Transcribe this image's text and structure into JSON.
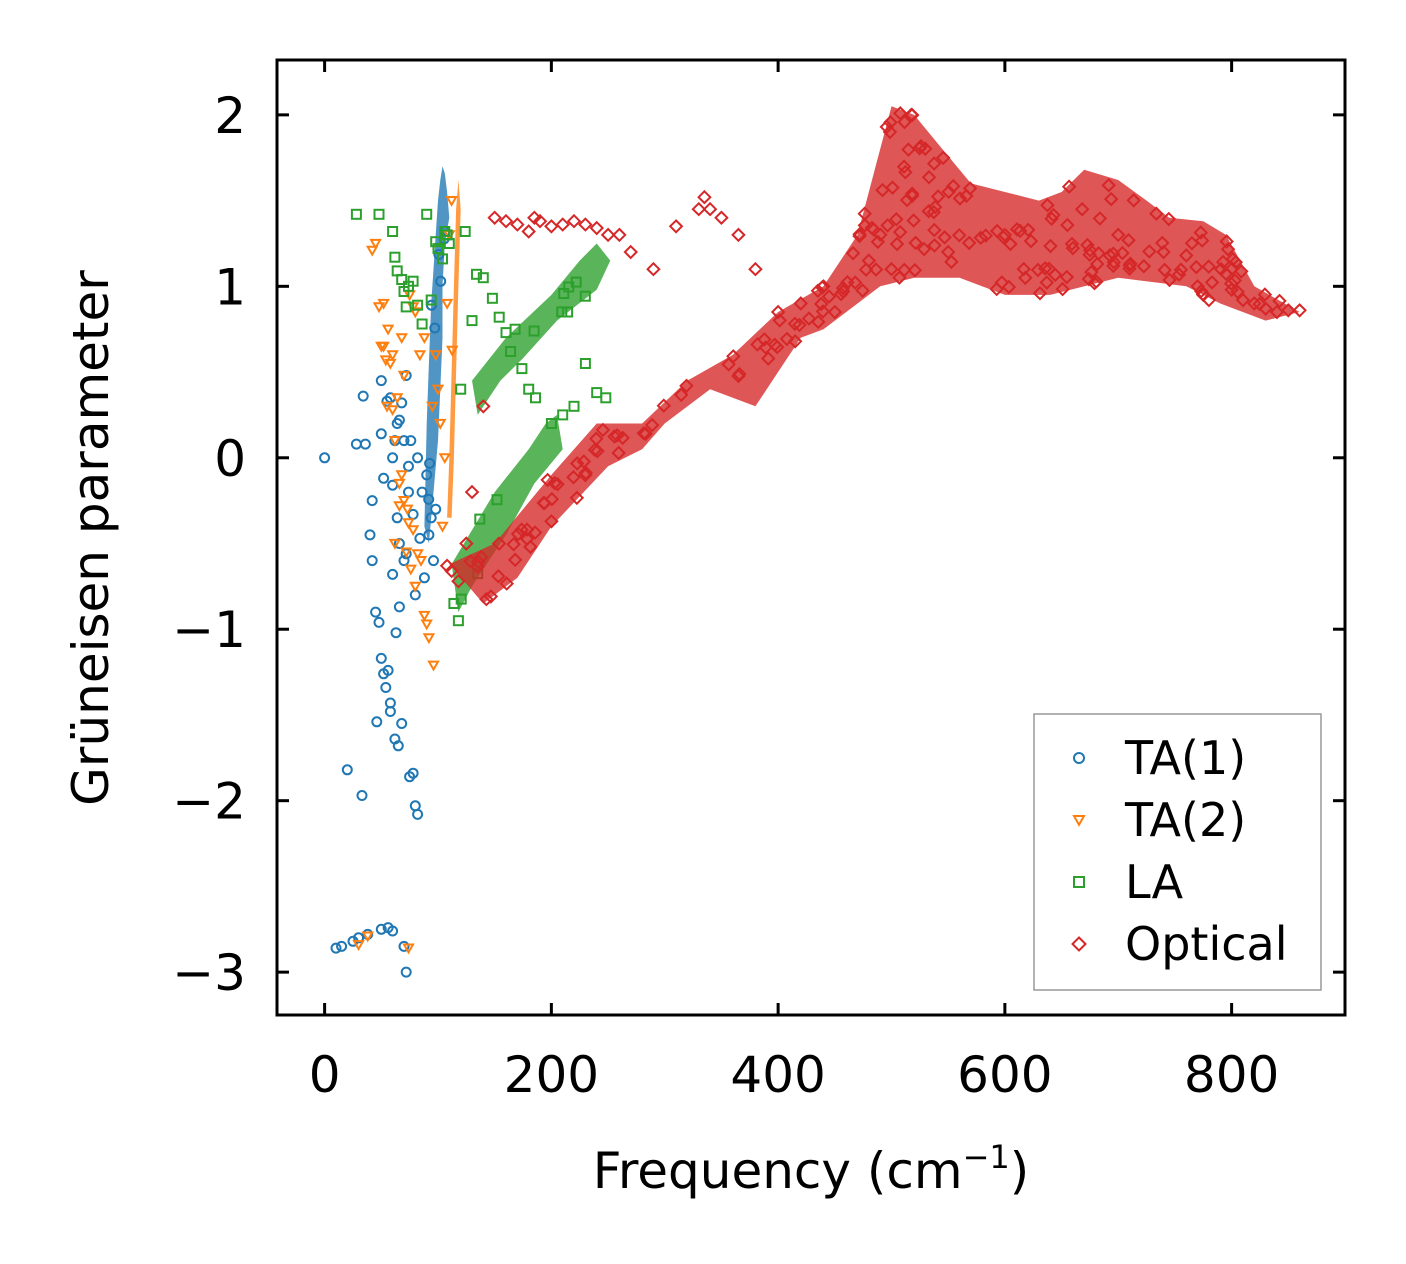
{
  "chart_data": {
    "type": "scatter",
    "xlabel": "Frequency (cm",
    "xlabel_sup": "−1",
    "xlabel_close": ")",
    "ylabel": "Grüneisen parameter",
    "xlim": [
      -42,
      900
    ],
    "ylim": [
      -3.25,
      2.32
    ],
    "x_ticks": [
      0,
      200,
      400,
      600,
      800
    ],
    "x_tick_labels": [
      "0",
      "200",
      "400",
      "600",
      "800"
    ],
    "y_ticks": [
      2,
      1,
      0,
      -1,
      -2,
      -3
    ],
    "y_tick_labels": [
      "2",
      "1",
      "0",
      "−1",
      "−2",
      "−3"
    ],
    "legend_position": "lower-right",
    "grid": false,
    "series": [
      {
        "name": "TA(1)",
        "marker": "circle",
        "color": "#1f77b4",
        "points": [
          [
            0,
            0
          ],
          [
            10,
            -2.86
          ],
          [
            15,
            -2.85
          ],
          [
            20,
            -1.82
          ],
          [
            25,
            -2.82
          ],
          [
            28,
            0.08
          ],
          [
            30,
            -2.8
          ],
          [
            33,
            -1.97
          ],
          [
            34,
            0.36
          ],
          [
            36,
            0.08
          ],
          [
            38,
            -2.78
          ],
          [
            40,
            -0.45
          ],
          [
            42,
            -0.25
          ],
          [
            42,
            -0.6
          ],
          [
            45,
            -0.9
          ],
          [
            46,
            -1.54
          ],
          [
            48,
            -0.96
          ],
          [
            50,
            -2.75
          ],
          [
            50,
            -1.17
          ],
          [
            50,
            0.14
          ],
          [
            52,
            -1.26
          ],
          [
            52,
            -0.12
          ],
          [
            54,
            -1.34
          ],
          [
            55,
            0.33
          ],
          [
            56,
            -2.74
          ],
          [
            56,
            -1.24
          ],
          [
            58,
            -1.48
          ],
          [
            60,
            -0.16
          ],
          [
            60,
            -0.68
          ],
          [
            60,
            -2.76
          ],
          [
            62,
            -1.64
          ],
          [
            63,
            -1.02
          ],
          [
            65,
            -1.68
          ],
          [
            66,
            -0.87
          ],
          [
            68,
            -1.55
          ],
          [
            70,
            -2.85
          ],
          [
            72,
            -0.56
          ],
          [
            72,
            -3.0
          ],
          [
            75,
            -1.86
          ],
          [
            78,
            -1.84
          ],
          [
            80,
            -2.03
          ],
          [
            82,
            -2.08
          ],
          [
            58,
            -1.43
          ],
          [
            62,
            0.1
          ],
          [
            64,
            -0.35
          ],
          [
            66,
            0.22
          ],
          [
            68,
            0.32
          ],
          [
            70,
            -0.6
          ],
          [
            72,
            0.48
          ],
          [
            74,
            -0.2
          ],
          [
            76,
            0.1
          ],
          [
            78,
            -0.33
          ],
          [
            80,
            -0.8
          ],
          [
            82,
            0.0
          ],
          [
            84,
            -0.47
          ],
          [
            86,
            -0.2
          ],
          [
            88,
            -0.7
          ],
          [
            90,
            -0.1
          ],
          [
            92,
            -0.45
          ],
          [
            94,
            -0.35
          ],
          [
            96,
            -0.6
          ],
          [
            98,
            -0.3
          ],
          [
            60,
            0.0
          ],
          [
            64,
            0.2
          ],
          [
            70,
            0.1
          ],
          [
            74,
            -0.05
          ],
          [
            58,
            0.35
          ],
          [
            66,
            -0.5
          ],
          [
            50,
            0.45
          ]
        ]
      },
      {
        "name": "TA(2)",
        "marker": "triangle-down",
        "color": "#ff7f0e",
        "points": [
          [
            30,
            -2.84
          ],
          [
            38,
            -2.79
          ],
          [
            42,
            1.21
          ],
          [
            45,
            1.25
          ],
          [
            48,
            0.88
          ],
          [
            50,
            0.65
          ],
          [
            52,
            0.9
          ],
          [
            54,
            0.57
          ],
          [
            55,
            0.3
          ],
          [
            56,
            0.75
          ],
          [
            58,
            0.55
          ],
          [
            60,
            0.28
          ],
          [
            62,
            0.1
          ],
          [
            64,
            0.35
          ],
          [
            66,
            -0.28
          ],
          [
            68,
            -0.1
          ],
          [
            70,
            0.48
          ],
          [
            72,
            -0.55
          ],
          [
            74,
            -0.38
          ],
          [
            76,
            -0.65
          ],
          [
            78,
            -0.42
          ],
          [
            80,
            -0.75
          ],
          [
            82,
            -0.56
          ],
          [
            85,
            -0.6
          ],
          [
            88,
            -0.92
          ],
          [
            90,
            -0.97
          ],
          [
            92,
            -1.05
          ],
          [
            96,
            -1.21
          ],
          [
            98,
            0.6
          ],
          [
            100,
            0.4
          ],
          [
            102,
            0.2
          ],
          [
            104,
            -0.4
          ],
          [
            106,
            0.0
          ],
          [
            108,
            0.9
          ],
          [
            110,
            1.3
          ],
          [
            112,
            1.5
          ],
          [
            75,
            0.95
          ],
          [
            68,
            0.7
          ],
          [
            60,
            0.6
          ],
          [
            62,
            -0.5
          ],
          [
            70,
            -0.25
          ],
          [
            73,
            -0.3
          ],
          [
            74,
            -2.86
          ],
          [
            78,
            0.88
          ],
          [
            80,
            0.85
          ],
          [
            84,
            0.6
          ],
          [
            88,
            0.7
          ],
          [
            95,
            0.3
          ],
          [
            66,
            -0.15
          ],
          [
            52,
            0.65
          ]
        ]
      },
      {
        "name": "LA",
        "marker": "square",
        "color": "#2ca02c",
        "points": [
          [
            28,
            1.42
          ],
          [
            48,
            1.42
          ],
          [
            60,
            1.32
          ],
          [
            62,
            1.17
          ],
          [
            64,
            1.09
          ],
          [
            68,
            1.04
          ],
          [
            70,
            0.97
          ],
          [
            72,
            0.88
          ],
          [
            74,
            1.0
          ],
          [
            78,
            1.03
          ],
          [
            82,
            0.89
          ],
          [
            86,
            0.78
          ],
          [
            90,
            1.42
          ],
          [
            94,
            0.92
          ],
          [
            98,
            1.26
          ],
          [
            100,
            1.22
          ],
          [
            104,
            1.16
          ],
          [
            106,
            1.32
          ],
          [
            108,
            1.3
          ],
          [
            110,
            1.25
          ],
          [
            114,
            -0.85
          ],
          [
            118,
            -0.95
          ],
          [
            120,
            0.4
          ],
          [
            124,
            1.32
          ],
          [
            130,
            0.8
          ],
          [
            134,
            1.07
          ],
          [
            140,
            1.05
          ],
          [
            148,
            0.93
          ],
          [
            154,
            0.82
          ],
          [
            160,
            0.73
          ],
          [
            164,
            0.62
          ],
          [
            168,
            0.75
          ],
          [
            174,
            0.52
          ],
          [
            180,
            0.4
          ],
          [
            186,
            0.35
          ],
          [
            200,
            0.2
          ],
          [
            210,
            0.25
          ],
          [
            220,
            0.3
          ],
          [
            230,
            0.55
          ],
          [
            240,
            0.38
          ],
          [
            248,
            0.35
          ]
        ]
      },
      {
        "name": "Optical",
        "marker": "diamond",
        "color": "#d62728",
        "points": [
          [
            108,
            -0.63
          ],
          [
            112,
            -0.66
          ],
          [
            118,
            -0.72
          ],
          [
            125,
            -0.5
          ],
          [
            130,
            -0.2
          ],
          [
            140,
            0.3
          ],
          [
            150,
            1.4
          ],
          [
            160,
            1.38
          ],
          [
            170,
            1.36
          ],
          [
            180,
            1.32
          ],
          [
            185,
            1.4
          ],
          [
            190,
            1.38
          ],
          [
            200,
            1.35
          ],
          [
            210,
            1.36
          ],
          [
            220,
            1.38
          ],
          [
            230,
            1.36
          ],
          [
            240,
            1.34
          ],
          [
            250,
            1.3
          ],
          [
            260,
            1.3
          ],
          [
            270,
            1.2
          ],
          [
            290,
            1.1
          ],
          [
            310,
            1.35
          ],
          [
            330,
            1.45
          ],
          [
            335,
            1.52
          ],
          [
            340,
            1.45
          ],
          [
            350,
            1.4
          ],
          [
            365,
            1.3
          ],
          [
            380,
            1.1
          ],
          [
            400,
            0.85
          ],
          [
            420,
            0.9
          ],
          [
            440,
            1.0
          ],
          [
            450,
            0.85
          ],
          [
            480,
            1.15
          ],
          [
            500,
            1.1
          ],
          [
            550,
            1.2
          ],
          [
            600,
            1.3
          ],
          [
            700,
            1.3
          ],
          [
            740,
            1.2
          ],
          [
            760,
            1.18
          ],
          [
            770,
            1.0
          ],
          [
            775,
            0.95
          ],
          [
            780,
            0.92
          ],
          [
            800,
            0.98
          ],
          [
            810,
            0.92
          ],
          [
            820,
            0.9
          ],
          [
            830,
            0.87
          ],
          [
            840,
            0.85
          ],
          [
            850,
            0.86
          ],
          [
            860,
            0.86
          ]
        ]
      }
    ],
    "clusters": [
      {
        "series": "TA(1)",
        "points": [
          [
            88,
            -0.4
          ],
          [
            90,
            0.2
          ],
          [
            92,
            0.55
          ],
          [
            94,
            0.9
          ],
          [
            96,
            1.1
          ],
          [
            98,
            1.3
          ],
          [
            100,
            1.5
          ],
          [
            102,
            1.62
          ],
          [
            104,
            1.7
          ],
          [
            106,
            1.66
          ],
          [
            108,
            1.55
          ],
          [
            110,
            1.4
          ],
          [
            106,
            1.25
          ],
          [
            104,
            1.0
          ],
          [
            104,
            0.7
          ],
          [
            102,
            0.4
          ],
          [
            100,
            0.1
          ],
          [
            96,
            -0.2
          ],
          [
            92,
            -0.5
          ]
        ],
        "density": 0.0017
      },
      {
        "series": "TA(2)",
        "points": [
          [
            108,
            -0.35
          ],
          [
            110,
            0.0
          ],
          [
            112,
            0.5
          ],
          [
            114,
            1.0
          ],
          [
            116,
            1.45
          ],
          [
            118,
            1.62
          ],
          [
            120,
            1.45
          ],
          [
            118,
            1.0
          ],
          [
            116,
            0.5
          ],
          [
            114,
            0.0
          ],
          [
            112,
            -0.35
          ]
        ],
        "density": 0.0007
      },
      {
        "series": "LA",
        "points": [
          [
            130,
            0.45
          ],
          [
            160,
            0.7
          ],
          [
            200,
            0.95
          ],
          [
            225,
            1.15
          ],
          [
            240,
            1.25
          ],
          [
            252,
            1.15
          ],
          [
            240,
            0.98
          ],
          [
            205,
            0.8
          ],
          [
            175,
            0.58
          ],
          [
            155,
            0.45
          ],
          [
            135,
            0.25
          ]
        ],
        "density": 0.0012
      },
      {
        "series": "LA",
        "points": [
          [
            112,
            -0.62
          ],
          [
            150,
            -0.2
          ],
          [
            180,
            0.05
          ],
          [
            195,
            0.2
          ],
          [
            205,
            0.25
          ],
          [
            210,
            0.05
          ],
          [
            185,
            -0.15
          ],
          [
            160,
            -0.45
          ],
          [
            130,
            -0.75
          ],
          [
            118,
            -0.9
          ]
        ],
        "density": 0.0008
      },
      {
        "series": "Optical",
        "points": [
          [
            110,
            -0.62
          ],
          [
            150,
            -0.5
          ],
          [
            200,
            -0.1
          ],
          [
            240,
            0.2
          ],
          [
            280,
            0.2
          ],
          [
            320,
            0.45
          ],
          [
            360,
            0.6
          ],
          [
            400,
            0.85
          ],
          [
            440,
            1.0
          ],
          [
            470,
            1.3
          ],
          [
            500,
            2.05
          ],
          [
            520,
            2.0
          ],
          [
            545,
            1.8
          ],
          [
            570,
            1.6
          ],
          [
            600,
            1.55
          ],
          [
            630,
            1.5
          ],
          [
            650,
            1.55
          ],
          [
            670,
            1.68
          ],
          [
            700,
            1.62
          ],
          [
            725,
            1.5
          ],
          [
            745,
            1.4
          ],
          [
            775,
            1.38
          ],
          [
            795,
            1.3
          ],
          [
            820,
            1.0
          ],
          [
            860,
            0.85
          ],
          [
            830,
            0.8
          ],
          [
            790,
            0.9
          ],
          [
            760,
            1.0
          ],
          [
            700,
            1.05
          ],
          [
            640,
            0.95
          ],
          [
            600,
            0.95
          ],
          [
            560,
            1.05
          ],
          [
            520,
            1.05
          ],
          [
            490,
            1.0
          ],
          [
            470,
            0.9
          ],
          [
            440,
            0.75
          ],
          [
            420,
            0.7
          ],
          [
            400,
            0.5
          ],
          [
            380,
            0.3
          ],
          [
            340,
            0.4
          ],
          [
            300,
            0.2
          ],
          [
            280,
            0.05
          ],
          [
            250,
            -0.05
          ],
          [
            200,
            -0.4
          ],
          [
            170,
            -0.7
          ],
          [
            140,
            -0.85
          ]
        ],
        "density": 0.0035
      }
    ]
  }
}
